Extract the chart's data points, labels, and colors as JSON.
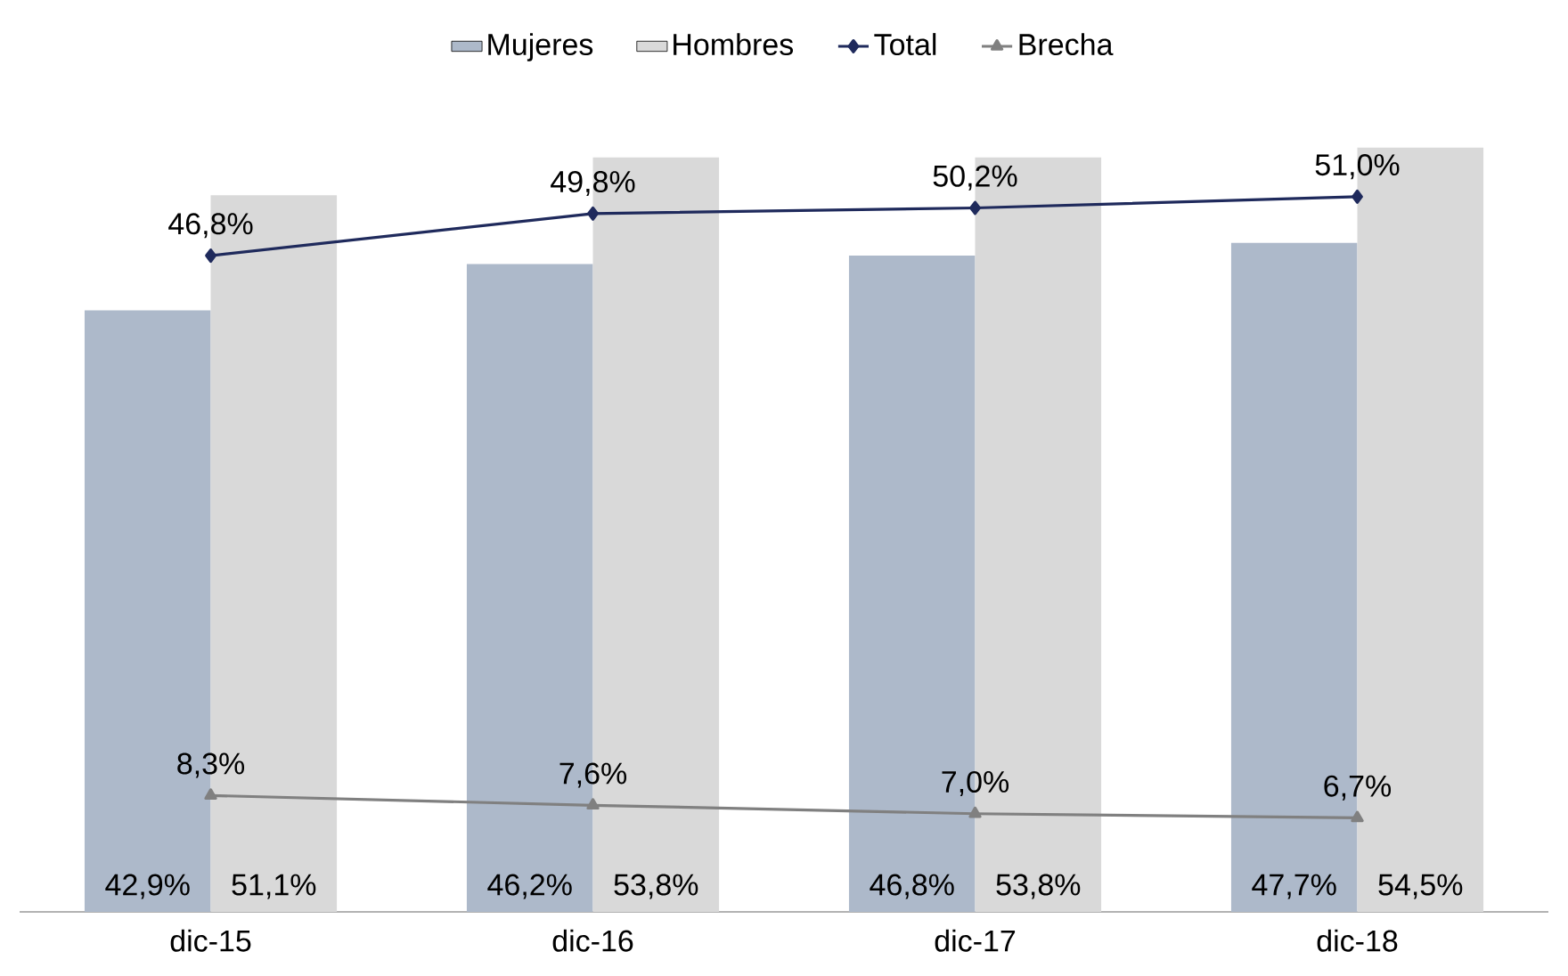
{
  "chart_data": {
    "type": "bar",
    "categories": [
      "dic-15",
      "dic-16",
      "dic-17",
      "dic-18"
    ],
    "legend": "top",
    "series": [
      {
        "name": "Mujeres",
        "color": "#adb9ca",
        "values": [
          42.9,
          46.2,
          46.8,
          47.7
        ],
        "value_labels": [
          "42,9%",
          "46,2%",
          "46,8%",
          "47,7%"
        ]
      },
      {
        "name": "Hombres",
        "color": "#d9d9d9",
        "values": [
          51.1,
          53.8,
          53.8,
          54.5
        ],
        "value_labels": [
          "51,1%",
          "53,8%",
          "53,8%",
          "54,5%"
        ]
      },
      {
        "name": "Total",
        "type": "line",
        "marker": "diamond",
        "color": "#1f2a5c",
        "values": [
          46.8,
          49.8,
          50.2,
          51.0
        ],
        "value_labels": [
          "46,8%",
          "49,8%",
          "50,2%",
          "51,0%"
        ]
      },
      {
        "name": "Brecha",
        "type": "line",
        "marker": "triangle",
        "color": "#808080",
        "values": [
          8.3,
          7.6,
          7.0,
          6.7
        ],
        "value_labels": [
          "8,3%",
          "7,6%",
          "7,0%",
          "6,7%"
        ]
      }
    ]
  }
}
